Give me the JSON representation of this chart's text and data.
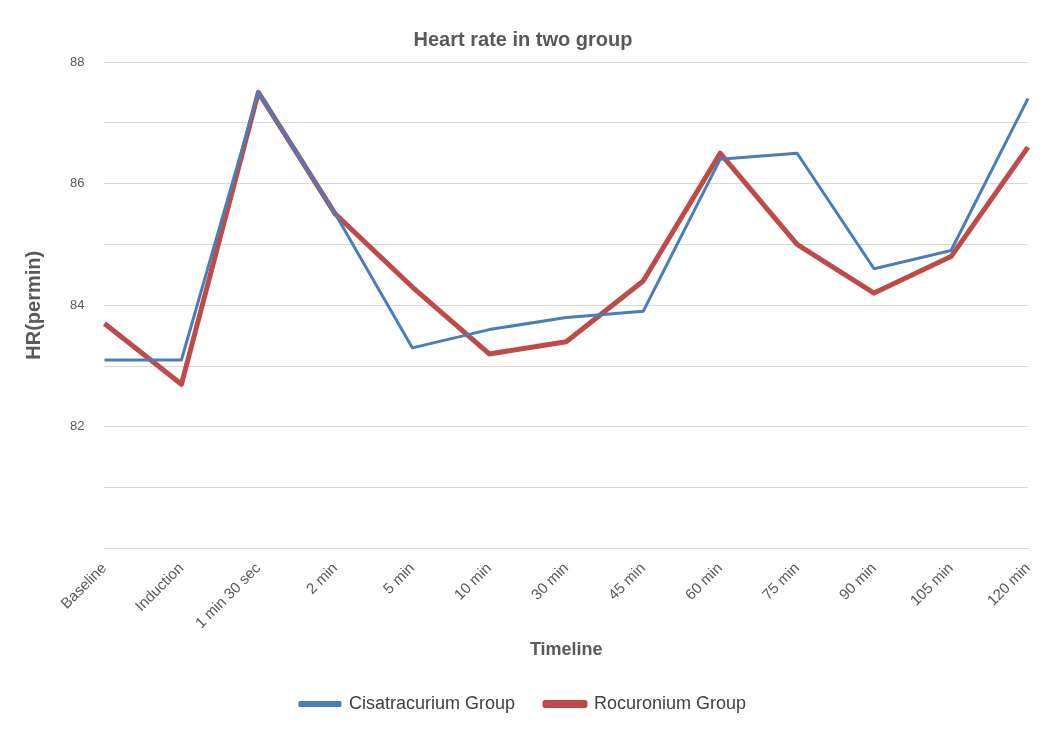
{
  "chart_data": {
    "type": "line",
    "title": "Heart rate in two group",
    "xlabel": "Timeline",
    "ylabel": "HR(permin)",
    "categories": [
      "Baseline",
      "Induction",
      "1 min 30 sec",
      "2 min",
      "5 min",
      "10 min",
      "30 min",
      "45 min",
      "60 min",
      "75 min",
      "90 min",
      "105 min",
      "120 min"
    ],
    "series": [
      {
        "name": "Cisatracurium Group",
        "color": "#4a7ebb",
        "values": [
          83.1,
          83.1,
          87.5,
          85.5,
          83.3,
          83.6,
          83.8,
          83.9,
          86.4,
          86.5,
          84.6,
          84.9,
          87.4
        ]
      },
      {
        "name": "Rocuronium Group",
        "color": "#be4b48",
        "values": [
          83.7,
          82.7,
          87.5,
          85.5,
          84.3,
          83.2,
          83.4,
          84.4,
          86.5,
          85.0,
          84.2,
          84.8,
          86.6
        ]
      }
    ],
    "ylim": [
      80,
      88
    ],
    "yticks": [
      {
        "value": 80,
        "label": null
      },
      {
        "value": 81,
        "label": null
      },
      82,
      {
        "value": 83,
        "label": null
      },
      84,
      {
        "value": 85,
        "label": null
      },
      86,
      {
        "value": 87,
        "label": null
      },
      88
    ],
    "grid": "y",
    "legend": "bottom",
    "marker": "none",
    "line_style": "solid"
  }
}
